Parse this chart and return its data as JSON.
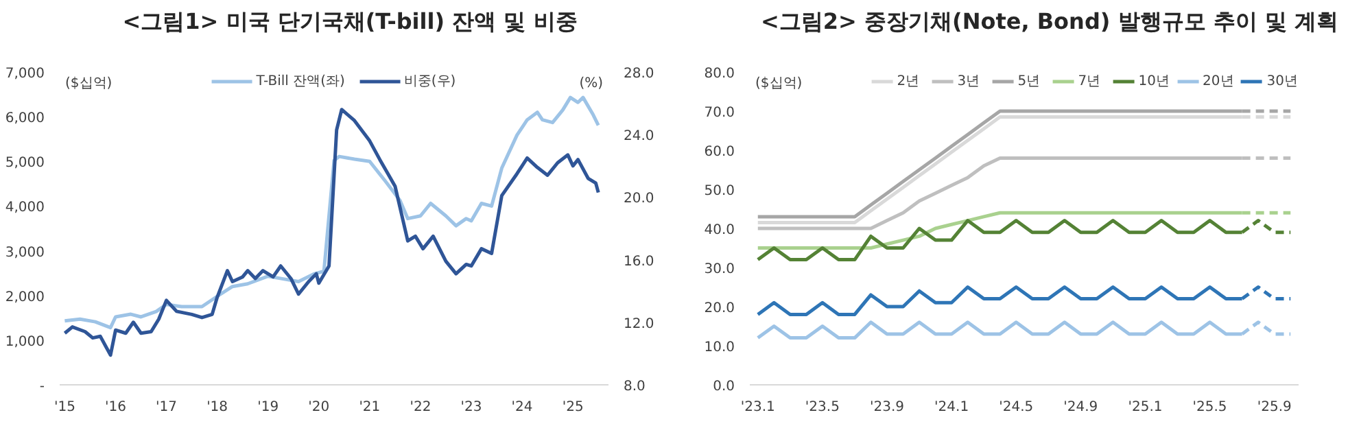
{
  "chart_data": [
    {
      "type": "line",
      "title": "<그림1> 미국 단기국채(T-bill) 잔액 및 비중",
      "ylabel": "($십억)",
      "y2label": "(%)",
      "legend": "top",
      "xlim": [
        2014.9,
        2025.7
      ],
      "xticks": [
        {
          "value": 2015,
          "label": "'15"
        },
        {
          "value": 2016,
          "label": "'16"
        },
        {
          "value": 2017,
          "label": "'17"
        },
        {
          "value": 2018,
          "label": "'18"
        },
        {
          "value": 2019,
          "label": "'19"
        },
        {
          "value": 2020,
          "label": "'20"
        },
        {
          "value": 2021,
          "label": "'21"
        },
        {
          "value": 2022,
          "label": "'22"
        },
        {
          "value": 2023,
          "label": "'23"
        },
        {
          "value": 2024,
          "label": "'24"
        },
        {
          "value": 2025,
          "label": "'25"
        }
      ],
      "ylim": [
        0,
        7000
      ],
      "yticks": [
        {
          "value": 0,
          "label": "-"
        },
        {
          "value": 1000,
          "label": "1,000"
        },
        {
          "value": 2000,
          "label": "2,000"
        },
        {
          "value": 3000,
          "label": "3,000"
        },
        {
          "value": 4000,
          "label": "4,000"
        },
        {
          "value": 5000,
          "label": "5,000"
        },
        {
          "value": 6000,
          "label": "6,000"
        },
        {
          "value": 7000,
          "label": "7,000"
        }
      ],
      "y2lim": [
        8,
        28
      ],
      "y2ticks": [
        {
          "value": 8,
          "label": "8.0"
        },
        {
          "value": 12,
          "label": "12.0"
        },
        {
          "value": 16,
          "label": "16.0"
        },
        {
          "value": 20,
          "label": "20.0"
        },
        {
          "value": 24,
          "label": "24.0"
        },
        {
          "value": 28,
          "label": "28.0"
        }
      ],
      "series": [
        {
          "name": "T-Bill 잔액(좌)",
          "color": "#9dc3e6",
          "x": [
            2015.0,
            2015.3,
            2015.6,
            2015.9,
            2016.0,
            2016.3,
            2016.5,
            2016.8,
            2017.0,
            2017.3,
            2017.7,
            2018.0,
            2018.3,
            2018.6,
            2019.0,
            2019.3,
            2019.6,
            2019.9,
            2020.1,
            2020.3,
            2020.4,
            2020.7,
            2021.0,
            2021.3,
            2021.6,
            2021.75,
            2022.0,
            2022.2,
            2022.5,
            2022.7,
            2022.9,
            2023.0,
            2023.2,
            2023.4,
            2023.6,
            2023.9,
            2024.1,
            2024.3,
            2024.4,
            2024.6,
            2024.8,
            2024.95,
            2025.1,
            2025.2,
            2025.4,
            2025.5
          ],
          "values": [
            1430,
            1470,
            1410,
            1280,
            1520,
            1580,
            1520,
            1640,
            1800,
            1750,
            1750,
            1980,
            2200,
            2260,
            2430,
            2370,
            2310,
            2480,
            2540,
            5020,
            5110,
            5050,
            5000,
            4570,
            4120,
            3720,
            3780,
            4060,
            3780,
            3560,
            3720,
            3670,
            4060,
            4000,
            4850,
            5590,
            5930,
            6100,
            5930,
            5870,
            6150,
            6430,
            6320,
            6430,
            6040,
            5810
          ]
        },
        {
          "name": "비중(우)",
          "color": "#2f5597",
          "axis": "y2",
          "x": [
            2015.0,
            2015.15,
            2015.4,
            2015.55,
            2015.7,
            2015.9,
            2016.0,
            2016.2,
            2016.35,
            2016.5,
            2016.7,
            2016.85,
            2017.0,
            2017.2,
            2017.5,
            2017.7,
            2017.9,
            2018.0,
            2018.2,
            2018.3,
            2018.5,
            2018.6,
            2018.75,
            2018.9,
            2019.1,
            2019.25,
            2019.45,
            2019.6,
            2019.8,
            2019.95,
            2020.0,
            2020.2,
            2020.35,
            2020.45,
            2020.7,
            2021.0,
            2021.2,
            2021.5,
            2021.75,
            2021.9,
            2022.05,
            2022.25,
            2022.5,
            2022.7,
            2022.9,
            2023.0,
            2023.2,
            2023.4,
            2023.6,
            2023.9,
            2024.1,
            2024.3,
            2024.5,
            2024.7,
            2024.9,
            2025.0,
            2025.1,
            2025.3,
            2025.45,
            2025.5
          ],
          "values": [
            11.3,
            11.7,
            11.4,
            11.0,
            11.1,
            9.9,
            11.5,
            11.3,
            12.0,
            11.3,
            11.4,
            12.2,
            13.4,
            12.7,
            12.5,
            12.3,
            12.5,
            13.6,
            15.3,
            14.6,
            14.9,
            15.3,
            14.8,
            15.3,
            14.9,
            15.6,
            14.8,
            13.8,
            14.6,
            15.1,
            14.5,
            15.6,
            24.3,
            25.6,
            24.9,
            23.6,
            22.4,
            20.7,
            17.2,
            17.5,
            16.7,
            17.5,
            15.9,
            15.1,
            15.7,
            15.6,
            16.7,
            16.4,
            20.1,
            21.5,
            22.5,
            21.9,
            21.4,
            22.2,
            22.7,
            22.0,
            22.4,
            21.2,
            20.9,
            20.3
          ]
        }
      ]
    },
    {
      "type": "line",
      "title": "<그림2> 중장기채(Note, Bond) 발행규모 추이 및 계획",
      "ylabel": "($십억)",
      "legend": "top",
      "categories": [
        "'23.1",
        null,
        null,
        null,
        "'23.5",
        null,
        null,
        null,
        "'23.9",
        null,
        null,
        null,
        "'24.1",
        null,
        null,
        null,
        "'24.5",
        null,
        null,
        null,
        "'24.9",
        null,
        null,
        null,
        "'25.1",
        null,
        null,
        null,
        "'25.5",
        null,
        null,
        null,
        "'25.9",
        null
      ],
      "ylim": [
        0,
        80
      ],
      "yticks": [
        {
          "value": 0,
          "label": "0.0"
        },
        {
          "value": 10,
          "label": "10.0"
        },
        {
          "value": 20,
          "label": "20.0"
        },
        {
          "value": 30,
          "label": "30.0"
        },
        {
          "value": 40,
          "label": "40.0"
        },
        {
          "value": 50,
          "label": "50.0"
        },
        {
          "value": 60,
          "label": "60.0"
        },
        {
          "value": 70,
          "label": "70.0"
        },
        {
          "value": 80,
          "label": "80.0"
        }
      ],
      "series": [
        {
          "name": "2년",
          "color": "#d9d9d9",
          "values": [
            41.5,
            41.5,
            41.5,
            41.5,
            41.5,
            41.5,
            41.5,
            44.5,
            47.5,
            50.5,
            53.5,
            56.5,
            59.5,
            62.5,
            65.5,
            68.5,
            68.5,
            68.5,
            68.5,
            68.5,
            68.5,
            68.5,
            68.5,
            68.5,
            68.5,
            68.5,
            68.5,
            68.5,
            68.5,
            68.5,
            68.5,
            null,
            null,
            null
          ]
        },
        {
          "name": "3년",
          "color": "#bfbfbf",
          "values": [
            40,
            40,
            40,
            40,
            40,
            40,
            40,
            40,
            42,
            44,
            47,
            49,
            51,
            53,
            56,
            58,
            58,
            58,
            58,
            58,
            58,
            58,
            58,
            58,
            58,
            58,
            58,
            58,
            58,
            58,
            58,
            null,
            null,
            null
          ]
        },
        {
          "name": "5년",
          "color": "#a6a6a6",
          "values": [
            43,
            43,
            43,
            43,
            43,
            43,
            43,
            46,
            49,
            52,
            55,
            58,
            61,
            64,
            67,
            70,
            70,
            70,
            70,
            70,
            70,
            70,
            70,
            70,
            70,
            70,
            70,
            70,
            70,
            70,
            70,
            null,
            null,
            null
          ]
        },
        {
          "name": "7년",
          "color": "#a9d18e",
          "values": [
            35,
            35,
            35,
            35,
            35,
            35,
            35,
            35,
            36,
            37,
            38,
            40,
            41,
            42,
            43,
            44,
            44,
            44,
            44,
            44,
            44,
            44,
            44,
            44,
            44,
            44,
            44,
            44,
            44,
            44,
            44,
            null,
            null,
            null
          ]
        },
        {
          "name": "10년",
          "color": "#548235",
          "values": [
            32,
            35,
            32,
            32,
            35,
            32,
            32,
            38,
            35,
            35,
            40,
            37,
            37,
            42,
            39,
            39,
            42,
            39,
            39,
            42,
            39,
            39,
            42,
            39,
            39,
            42,
            39,
            39,
            42,
            39,
            39,
            null,
            null,
            null
          ]
        },
        {
          "name": "20년",
          "color": "#9dc3e6",
          "values": [
            12,
            15,
            12,
            12,
            15,
            12,
            12,
            16,
            13,
            13,
            16,
            13,
            13,
            16,
            13,
            13,
            16,
            13,
            13,
            16,
            13,
            13,
            16,
            13,
            13,
            16,
            13,
            13,
            16,
            13,
            13,
            null,
            null,
            null
          ]
        },
        {
          "name": "30년",
          "color": "#2e75b6",
          "values": [
            18,
            21,
            18,
            18,
            21,
            18,
            18,
            23,
            20,
            20,
            24,
            21,
            21,
            25,
            22,
            22,
            25,
            22,
            22,
            25,
            22,
            22,
            25,
            22,
            22,
            25,
            22,
            22,
            25,
            22,
            22,
            null,
            null,
            null
          ]
        },
        {
          "color": "#d9d9d9",
          "line_style": "dashed",
          "values": [
            null,
            null,
            null,
            null,
            null,
            null,
            null,
            null,
            null,
            null,
            null,
            null,
            null,
            null,
            null,
            null,
            null,
            null,
            null,
            null,
            null,
            null,
            null,
            null,
            null,
            null,
            null,
            null,
            null,
            null,
            68.5,
            68.5,
            68.5,
            68.5
          ]
        },
        {
          "color": "#bfbfbf",
          "line_style": "dashed",
          "values": [
            null,
            null,
            null,
            null,
            null,
            null,
            null,
            null,
            null,
            null,
            null,
            null,
            null,
            null,
            null,
            null,
            null,
            null,
            null,
            null,
            null,
            null,
            null,
            null,
            null,
            null,
            null,
            null,
            null,
            null,
            58,
            58,
            58,
            58
          ]
        },
        {
          "color": "#a6a6a6",
          "line_style": "dashed",
          "values": [
            null,
            null,
            null,
            null,
            null,
            null,
            null,
            null,
            null,
            null,
            null,
            null,
            null,
            null,
            null,
            null,
            null,
            null,
            null,
            null,
            null,
            null,
            null,
            null,
            null,
            null,
            null,
            null,
            null,
            null,
            70,
            70,
            70,
            70
          ]
        },
        {
          "color": "#a9d18e",
          "line_style": "dashed",
          "values": [
            null,
            null,
            null,
            null,
            null,
            null,
            null,
            null,
            null,
            null,
            null,
            null,
            null,
            null,
            null,
            null,
            null,
            null,
            null,
            null,
            null,
            null,
            null,
            null,
            null,
            null,
            null,
            null,
            null,
            null,
            44,
            44,
            44,
            44
          ]
        },
        {
          "color": "#548235",
          "line_style": "dashed",
          "values": [
            null,
            null,
            null,
            null,
            null,
            null,
            null,
            null,
            null,
            null,
            null,
            null,
            null,
            null,
            null,
            null,
            null,
            null,
            null,
            null,
            null,
            null,
            null,
            null,
            null,
            null,
            null,
            null,
            null,
            null,
            39,
            42,
            39,
            39
          ]
        },
        {
          "color": "#9dc3e6",
          "line_style": "dashed",
          "values": [
            null,
            null,
            null,
            null,
            null,
            null,
            null,
            null,
            null,
            null,
            null,
            null,
            null,
            null,
            null,
            null,
            null,
            null,
            null,
            null,
            null,
            null,
            null,
            null,
            null,
            null,
            null,
            null,
            null,
            null,
            13,
            16,
            13,
            13
          ]
        },
        {
          "color": "#2e75b6",
          "line_style": "dashed",
          "values": [
            null,
            null,
            null,
            null,
            null,
            null,
            null,
            null,
            null,
            null,
            null,
            null,
            null,
            null,
            null,
            null,
            null,
            null,
            null,
            null,
            null,
            null,
            null,
            null,
            null,
            null,
            null,
            null,
            null,
            null,
            22,
            25,
            22,
            22
          ]
        }
      ]
    }
  ]
}
